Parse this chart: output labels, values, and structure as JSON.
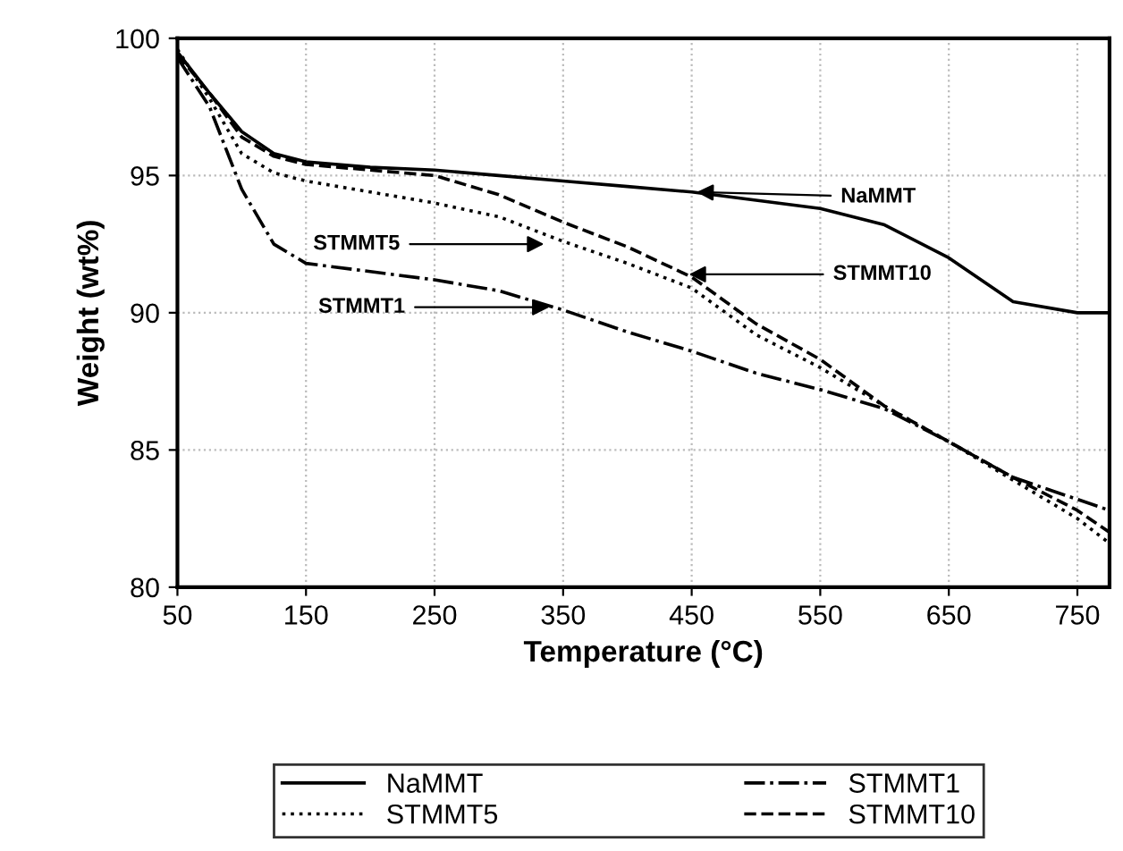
{
  "chart_data": {
    "type": "line",
    "xlabel": "Temperature (°C)",
    "ylabel": "Weight (wt%)",
    "xlim": [
      50,
      775
    ],
    "xticks": [
      50,
      150,
      250,
      350,
      450,
      550,
      650,
      750
    ],
    "ylim": [
      80,
      100
    ],
    "yticks": [
      80,
      85,
      90,
      95,
      100
    ],
    "x": [
      50,
      75,
      100,
      125,
      150,
      200,
      250,
      300,
      350,
      400,
      450,
      500,
      550,
      600,
      650,
      700,
      750,
      775
    ],
    "series": [
      {
        "name": "NaMMT",
        "color": "#000000",
        "line_style": "solid",
        "values": [
          99.5,
          98.0,
          96.6,
          95.8,
          95.5,
          95.3,
          95.2,
          95.0,
          94.8,
          94.6,
          94.4,
          94.1,
          93.8,
          93.2,
          92.0,
          90.4,
          90.0,
          90.0
        ]
      },
      {
        "name": "STMMT1",
        "color": "#000000",
        "line_style": "dashdot",
        "values": [
          99.3,
          97.5,
          94.5,
          92.5,
          91.8,
          91.5,
          91.2,
          90.8,
          90.1,
          89.3,
          88.6,
          87.8,
          87.2,
          86.5,
          85.3,
          84.0,
          83.2,
          82.8
        ]
      },
      {
        "name": "STMMT5",
        "color": "#000000",
        "line_style": "dotted",
        "values": [
          99.6,
          97.8,
          95.8,
          95.1,
          94.8,
          94.4,
          94.0,
          93.5,
          92.6,
          91.8,
          90.9,
          89.2,
          88.0,
          86.6,
          85.3,
          83.9,
          82.5,
          81.6
        ]
      },
      {
        "name": "STMMT10",
        "color": "#000000",
        "line_style": "dashed",
        "values": [
          99.4,
          98.0,
          96.4,
          95.7,
          95.4,
          95.2,
          95.0,
          94.3,
          93.3,
          92.4,
          91.3,
          89.6,
          88.3,
          86.6,
          85.3,
          84.0,
          82.8,
          82.0
        ]
      }
    ],
    "annotations": [
      {
        "text": "NaMMT",
        "x": 450,
        "y": 94.4
      },
      {
        "text": "STMMT10",
        "x": 444,
        "y": 91.4
      },
      {
        "text": "STMMT5",
        "x": 339,
        "y": 92.5
      },
      {
        "text": "STMMT1",
        "x": 343,
        "y": 90.2
      }
    ],
    "grid": true,
    "legend": "bottom"
  }
}
